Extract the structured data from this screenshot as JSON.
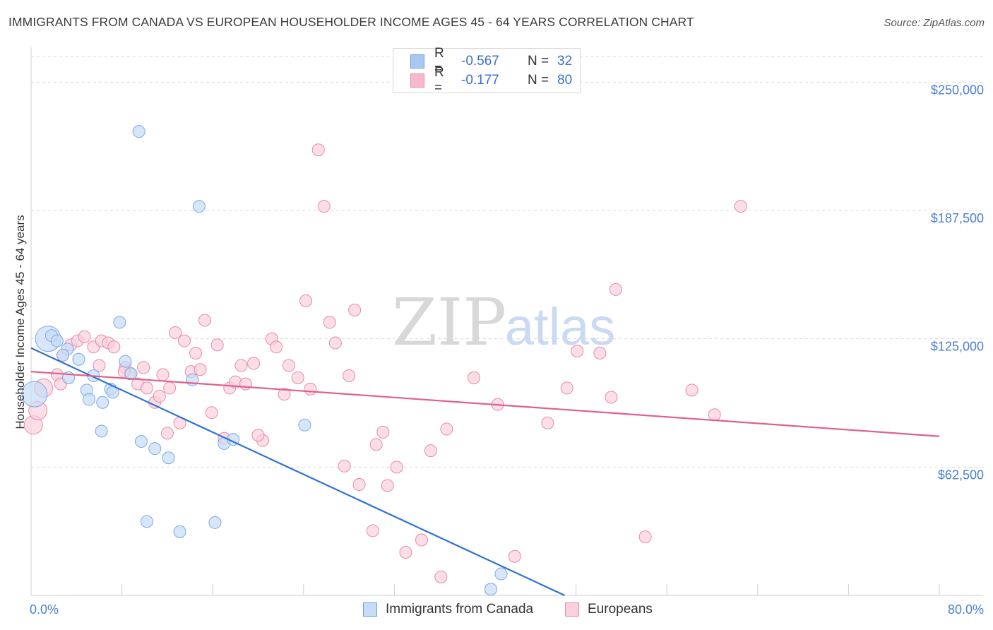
{
  "header": {
    "title": "IMMIGRANTS FROM CANADA VS EUROPEAN HOUSEHOLDER INCOME AGES 45 - 64 YEARS CORRELATION CHART",
    "source": "Source: ZipAtlas.com"
  },
  "watermark": {
    "zip": "ZIP",
    "atlas": "atlas"
  },
  "legend": {
    "rows": [
      {
        "r_label": "R =",
        "r_value": "-0.567",
        "n_label": "N =",
        "n_value": "32",
        "color": "#a8c8f0",
        "border": "#6a9ee0"
      },
      {
        "r_label": "R =",
        "r_value": "-0.177",
        "n_label": "N =",
        "n_value": "80",
        "color": "#f6b8cb",
        "border": "#e88aa8"
      }
    ]
  },
  "bottom_legend": [
    {
      "label": "Immigrants from Canada",
      "color": "#c6dcf7",
      "border": "#6a9ee0"
    },
    {
      "label": "Europeans",
      "color": "#fbd0dd",
      "border": "#e88aa8"
    }
  ],
  "chart_data": {
    "type": "scatter",
    "title": "IMMIGRANTS FROM CANADA VS EUROPEAN HOUSEHOLDER INCOME AGES 45 - 64 YEARS CORRELATION CHART",
    "xlabel": "",
    "ylabel": "Householder Income Ages 45 - 64 years",
    "xlim": [
      0,
      80
    ],
    "ylim": [
      0,
      262500
    ],
    "x_tick_labels": [
      "0.0%",
      "80.0%"
    ],
    "y_ticks": [
      62500,
      125000,
      187500,
      250000
    ],
    "y_tick_labels": [
      "$62,500",
      "$125,000",
      "$187,500",
      "$250,000"
    ],
    "grid": true,
    "series": [
      {
        "name": "Immigrants from Canada",
        "color": "#7aaae6",
        "fill": "#c6dcf7",
        "trend": {
          "x0": 0,
          "y0": 120500,
          "x1": 47,
          "y1": 0,
          "color": "#2f72d6"
        },
        "points": [
          [
            1.5,
            125000,
            22
          ],
          [
            3.2,
            120000,
            10
          ],
          [
            1.8,
            126500,
            10
          ],
          [
            2.3,
            124000,
            10
          ],
          [
            2.8,
            117000,
            10
          ],
          [
            4.2,
            115000,
            10
          ],
          [
            3.3,
            106000,
            10
          ],
          [
            5.5,
            107000,
            10
          ],
          [
            4.9,
            100000,
            10
          ],
          [
            5.1,
            95500,
            10
          ],
          [
            6.3,
            94000,
            10
          ],
          [
            6.2,
            80000,
            10
          ],
          [
            7.0,
            100500,
            10
          ],
          [
            7.2,
            99000,
            10
          ],
          [
            7.8,
            133000,
            10
          ],
          [
            8.3,
            114000,
            10
          ],
          [
            8.8,
            108000,
            10
          ],
          [
            9.7,
            75000,
            10
          ],
          [
            10.9,
            71500,
            10
          ],
          [
            12.1,
            67000,
            10
          ],
          [
            9.5,
            226000,
            10
          ],
          [
            14.8,
            189500,
            10
          ],
          [
            14.2,
            105000,
            10
          ],
          [
            17.0,
            74000,
            10
          ],
          [
            17.8,
            76000,
            10
          ],
          [
            24.1,
            83000,
            10
          ],
          [
            10.2,
            36000,
            10
          ],
          [
            13.1,
            31000,
            10
          ],
          [
            16.2,
            35500,
            10
          ],
          [
            0.3,
            98000,
            22
          ],
          [
            41.4,
            10500,
            10
          ],
          [
            40.5,
            3000,
            10
          ]
        ]
      },
      {
        "name": "Europeans",
        "color": "#e88aa8",
        "fill": "#fbd0dd",
        "trend": {
          "x0": 0,
          "y0": 109000,
          "x1": 80,
          "y1": 77500,
          "color": "#e0608a"
        },
        "points": [
          [
            0.2,
            83000,
            14
          ],
          [
            0.6,
            90000,
            14
          ],
          [
            1.1,
            101000,
            14
          ],
          [
            2.3,
            107500,
            10
          ],
          [
            2.8,
            117000,
            10
          ],
          [
            3.5,
            122000,
            10
          ],
          [
            4.1,
            124000,
            10
          ],
          [
            4.7,
            126000,
            10
          ],
          [
            5.5,
            121000,
            10
          ],
          [
            6.2,
            124000,
            10
          ],
          [
            6.8,
            123000,
            10
          ],
          [
            7.3,
            121000,
            10
          ],
          [
            8.3,
            111000,
            10
          ],
          [
            8.7,
            108000,
            10
          ],
          [
            9.4,
            103000,
            10
          ],
          [
            9.9,
            111000,
            10
          ],
          [
            10.2,
            101000,
            10
          ],
          [
            10.9,
            94000,
            10
          ],
          [
            11.3,
            97000,
            10
          ],
          [
            11.6,
            107500,
            10
          ],
          [
            12.2,
            101000,
            10
          ],
          [
            12.7,
            128000,
            10
          ],
          [
            13.1,
            84000,
            10
          ],
          [
            13.5,
            124000,
            10
          ],
          [
            14.1,
            109000,
            10
          ],
          [
            14.5,
            118000,
            10
          ],
          [
            15.3,
            134000,
            10
          ],
          [
            15.9,
            89000,
            10
          ],
          [
            16.4,
            122000,
            10
          ],
          [
            17.0,
            76500,
            10
          ],
          [
            17.5,
            101000,
            10
          ],
          [
            18.0,
            104000,
            10
          ],
          [
            18.5,
            112000,
            10
          ],
          [
            18.9,
            103000,
            10
          ],
          [
            19.6,
            113000,
            10
          ],
          [
            20.4,
            75500,
            10
          ],
          [
            21.2,
            125000,
            10
          ],
          [
            21.6,
            121000,
            10
          ],
          [
            22.3,
            98000,
            10
          ],
          [
            22.7,
            112000,
            10
          ],
          [
            23.5,
            106000,
            10
          ],
          [
            24.2,
            143500,
            10
          ],
          [
            24.6,
            100500,
            10
          ],
          [
            25.3,
            217000,
            10
          ],
          [
            25.8,
            189500,
            10
          ],
          [
            26.3,
            133000,
            10
          ],
          [
            26.8,
            123000,
            10
          ],
          [
            27.6,
            63000,
            10
          ],
          [
            28.0,
            107000,
            10
          ],
          [
            28.5,
            139000,
            10
          ],
          [
            28.9,
            54000,
            10
          ],
          [
            30.1,
            31500,
            10
          ],
          [
            30.4,
            73500,
            10
          ],
          [
            31.0,
            79500,
            10
          ],
          [
            31.4,
            53500,
            10
          ],
          [
            32.2,
            62500,
            10
          ],
          [
            33.0,
            21000,
            10
          ],
          [
            34.4,
            27000,
            10
          ],
          [
            35.2,
            70500,
            10
          ],
          [
            36.1,
            9000,
            10
          ],
          [
            36.6,
            81000,
            10
          ],
          [
            39.0,
            106000,
            10
          ],
          [
            41.1,
            93000,
            10
          ],
          [
            42.6,
            19000,
            10
          ],
          [
            45.5,
            84000,
            10
          ],
          [
            47.2,
            101000,
            10
          ],
          [
            48.1,
            119000,
            10
          ],
          [
            50.1,
            118000,
            10
          ],
          [
            51.1,
            96500,
            10
          ],
          [
            51.5,
            149000,
            10
          ],
          [
            54.1,
            28500,
            10
          ],
          [
            58.2,
            100000,
            10
          ],
          [
            60.2,
            88000,
            10
          ],
          [
            62.5,
            189500,
            10
          ],
          [
            2.6,
            103000,
            10
          ],
          [
            8.2,
            109000,
            10
          ],
          [
            6.0,
            112000,
            10
          ],
          [
            12.0,
            79000,
            10
          ],
          [
            14.9,
            110000,
            10
          ],
          [
            20.0,
            78000,
            10
          ]
        ]
      }
    ]
  }
}
